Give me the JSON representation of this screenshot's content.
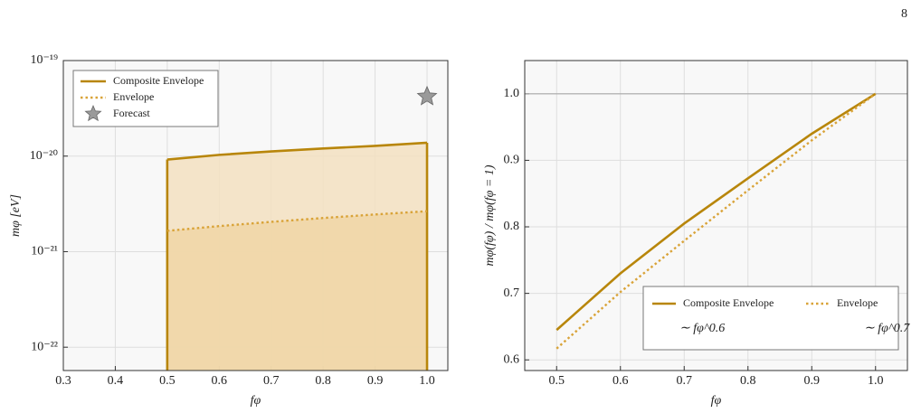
{
  "page_number": "8",
  "chart_data": [
    {
      "type": "line",
      "xlabel": "fφ",
      "ylabel": "mφ [eV]",
      "x": [
        0.5,
        0.6,
        0.7,
        0.8,
        0.9,
        1.0
      ],
      "series": [
        {
          "name": "Composite Envelope",
          "color": "#b8860b",
          "linestyle": "solid",
          "fill": "#f3e1c1",
          "edges": true,
          "values": [
            9.2e-21,
            1.03e-20,
            1.12e-20,
            1.2e-20,
            1.28e-20,
            1.38e-20
          ]
        },
        {
          "name": "Envelope",
          "color": "#d9a338",
          "linestyle": "dotted",
          "fill": "#f0d6a6",
          "values": [
            1.65e-21,
            1.85e-21,
            2.05e-21,
            2.25e-21,
            2.45e-21,
            2.65e-21
          ]
        }
      ],
      "markers": [
        {
          "name": "Forecast",
          "x": 1.0,
          "y": 4.2e-20,
          "color": "#9a9a9a"
        }
      ],
      "xlim": [
        0.3,
        1.04
      ],
      "xticks": [
        0.3,
        0.4,
        0.5,
        0.6,
        0.7,
        0.8,
        0.9,
        {
          "value": 1,
          "label": "1.0"
        }
      ],
      "ylog": true,
      "ylim": [
        5.7e-23,
        1e-19
      ],
      "yticks": [
        {
          "value": 1e-22,
          "label": "10⁻²²"
        },
        {
          "value": 1e-21,
          "label": "10⁻²¹"
        },
        {
          "value": 1e-20,
          "label": "10⁻²⁰"
        },
        {
          "value": 1e-19,
          "label": "10⁻¹⁹"
        }
      ],
      "grid": true,
      "legend": "upper left"
    },
    {
      "type": "line",
      "xlabel": "fφ",
      "ylabel": "mφ(fφ) / mφ(fφ = 1)",
      "x": [
        0.5,
        0.6,
        0.7,
        0.8,
        0.9,
        1.0
      ],
      "series": [
        {
          "name": "Composite Envelope",
          "color": "#b8860b",
          "linestyle": "solid",
          "note": "∼ fφ^0.6",
          "values": [
            0.645,
            0.73,
            0.805,
            0.873,
            0.94,
            1.0
          ]
        },
        {
          "name": "Envelope",
          "color": "#d9a338",
          "linestyle": "dotted",
          "note": "∼ fφ^0.7",
          "values": [
            0.617,
            0.702,
            0.779,
            0.855,
            0.93,
            1.0
          ]
        }
      ],
      "hline": 1,
      "xlim": [
        0.45,
        1.05
      ],
      "xticks": [
        0.5,
        0.6,
        0.7,
        0.8,
        0.9,
        {
          "value": 1,
          "label": "1.0"
        }
      ],
      "ylim": [
        0.584,
        1.05
      ],
      "yticks": [
        0.6,
        0.7,
        0.8,
        0.9,
        {
          "value": 1,
          "label": "1.0"
        }
      ],
      "grid": true,
      "legend": "lower right"
    }
  ]
}
